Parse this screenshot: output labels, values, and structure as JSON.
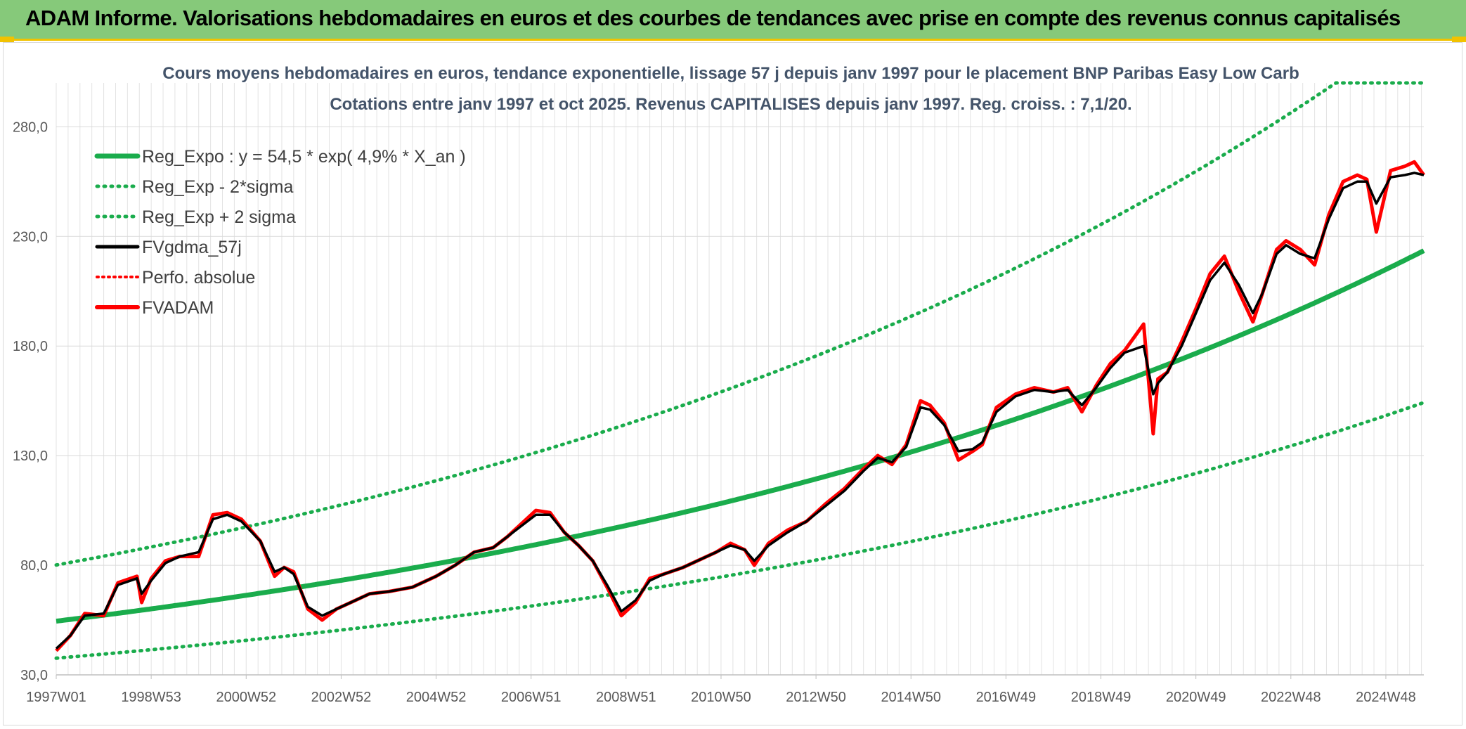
{
  "header": {
    "title": "ADAM Informe. Valorisations hebdomadaires en euros et des courbes de tendances avec prise en compte des revenus connus capitalisés"
  },
  "colors": {
    "banner": "#86c97a",
    "accent": "#f2c200",
    "regression": "#1aac4c",
    "smoothed": "#000000",
    "fvadam": "#ff0000"
  },
  "chart_data": {
    "type": "line",
    "title": "Cours moyens hebdomadaires en euros, tendance exponentielle, lissage 57 j depuis janv 1997 pour le placement BNP Paribas Easy Low Carb",
    "subtitle": "Cotations entre janv 1997 et oct 2025. Revenus CAPITALISES depuis janv 1997. Reg. croiss. : 7,1/20.",
    "xlabel": "",
    "ylabel": "",
    "ylim": [
      30,
      300
    ],
    "xlim": [
      1997.0,
      2025.8
    ],
    "yticks": [
      "30,0",
      "80,0",
      "130,0",
      "180,0",
      "230,0",
      "280,0"
    ],
    "ytick_values": [
      30,
      80,
      130,
      180,
      230,
      280
    ],
    "xticks": [
      "1997W01",
      "1998W53",
      "2000W52",
      "2002W52",
      "2004W52",
      "2006W51",
      "2008W51",
      "2010W50",
      "2012W50",
      "2014W50",
      "2016W49",
      "2018W49",
      "2020W49",
      "2022W48",
      "2024W48"
    ],
    "xtick_values": [
      1997.0,
      1999.0,
      2001.0,
      2003.0,
      2005.0,
      2007.0,
      2009.0,
      2011.0,
      2013.0,
      2015.0,
      2017.0,
      2019.0,
      2021.0,
      2023.0,
      2025.0
    ],
    "regression": {
      "a": 54.5,
      "rate": 0.049,
      "minus_2sigma_factor": 0.69,
      "plus_2sigma_factor": 1.47,
      "cap": 300
    },
    "legend_position": "top-left",
    "legend": [
      {
        "label": "Reg_Expo : y = 54,5 * exp( 4,9% *  X_an )",
        "style": "solid-thick-green"
      },
      {
        "label": "Reg_Exp - 2*sigma",
        "style": "dotted-green"
      },
      {
        "label": "Reg_Exp + 2 sigma",
        "style": "dotted-green"
      },
      {
        "label": "FVgdma_57j",
        "style": "solid-black"
      },
      {
        "label": "Perfo. absolue",
        "style": "dotted-red"
      },
      {
        "label": "FVADAM",
        "style": "solid-red"
      }
    ],
    "series": [
      {
        "name": "FVADAM",
        "x": [
          1997.0,
          1997.3,
          1997.6,
          1998.0,
          1998.3,
          1998.7,
          1998.8,
          1999.0,
          1999.3,
          1999.6,
          2000.0,
          2000.3,
          2000.6,
          2000.9,
          2001.3,
          2001.6,
          2001.8,
          2002.0,
          2002.3,
          2002.6,
          2002.9,
          2003.2,
          2003.6,
          2004.0,
          2004.5,
          2005.0,
          2005.4,
          2005.8,
          2006.2,
          2006.5,
          2006.8,
          2007.1,
          2007.4,
          2007.7,
          2008.0,
          2008.3,
          2008.6,
          2008.9,
          2009.2,
          2009.5,
          2009.8,
          2010.2,
          2010.5,
          2010.9,
          2011.2,
          2011.5,
          2011.7,
          2012.0,
          2012.4,
          2012.8,
          2013.2,
          2013.6,
          2014.0,
          2014.3,
          2014.6,
          2014.9,
          2015.2,
          2015.4,
          2015.7,
          2016.0,
          2016.3,
          2016.5,
          2016.8,
          2017.2,
          2017.6,
          2018.0,
          2018.3,
          2018.6,
          2018.9,
          2019.2,
          2019.5,
          2019.9,
          2020.1,
          2020.2,
          2020.4,
          2020.7,
          2021.0,
          2021.3,
          2021.6,
          2021.9,
          2022.2,
          2022.4,
          2022.7,
          2022.9,
          2023.2,
          2023.5,
          2023.8,
          2024.1,
          2024.4,
          2024.6,
          2024.8,
          2025.1,
          2025.4,
          2025.6,
          2025.8
        ],
        "values": [
          41,
          48,
          58,
          57,
          72,
          75,
          63,
          74,
          82,
          84,
          84,
          103,
          104,
          101,
          91,
          75,
          79,
          77,
          60,
          55,
          60,
          63,
          67,
          68,
          70,
          75,
          80,
          86,
          88,
          93,
          99,
          105,
          104,
          95,
          89,
          82,
          70,
          57,
          63,
          74,
          76,
          79,
          82,
          86,
          90,
          87,
          80,
          90,
          96,
          100,
          108,
          115,
          124,
          130,
          126,
          135,
          155,
          153,
          145,
          128,
          132,
          135,
          152,
          158,
          161,
          159,
          161,
          150,
          162,
          172,
          178,
          190,
          140,
          165,
          168,
          182,
          197,
          213,
          221,
          205,
          191,
          204,
          224,
          228,
          224,
          217,
          240,
          255,
          258,
          256,
          232,
          260,
          262,
          264,
          258
        ]
      },
      {
        "name": "FVgdma_57j",
        "x": [
          1997.0,
          1997.3,
          1997.6,
          1998.0,
          1998.3,
          1998.7,
          1998.8,
          1999.0,
          1999.3,
          1999.6,
          2000.0,
          2000.3,
          2000.6,
          2000.9,
          2001.3,
          2001.6,
          2001.8,
          2002.0,
          2002.3,
          2002.6,
          2002.9,
          2003.2,
          2003.6,
          2004.0,
          2004.5,
          2005.0,
          2005.4,
          2005.8,
          2006.2,
          2006.5,
          2006.8,
          2007.1,
          2007.4,
          2007.7,
          2008.0,
          2008.3,
          2008.6,
          2008.9,
          2009.2,
          2009.5,
          2009.8,
          2010.2,
          2010.5,
          2010.9,
          2011.2,
          2011.5,
          2011.7,
          2012.0,
          2012.4,
          2012.8,
          2013.2,
          2013.6,
          2014.0,
          2014.3,
          2014.6,
          2014.9,
          2015.2,
          2015.4,
          2015.7,
          2016.0,
          2016.3,
          2016.5,
          2016.8,
          2017.2,
          2017.6,
          2018.0,
          2018.3,
          2018.6,
          2018.9,
          2019.2,
          2019.5,
          2019.9,
          2020.1,
          2020.2,
          2020.4,
          2020.7,
          2021.0,
          2021.3,
          2021.6,
          2021.9,
          2022.2,
          2022.4,
          2022.7,
          2022.9,
          2023.2,
          2023.5,
          2023.8,
          2024.1,
          2024.4,
          2024.6,
          2024.8,
          2025.1,
          2025.4,
          2025.6,
          2025.8
        ],
        "values": [
          42,
          48,
          57,
          58,
          71,
          74,
          67,
          73,
          81,
          84,
          86,
          101,
          103,
          100,
          91,
          77,
          79,
          76,
          61,
          57,
          60,
          63,
          67,
          68,
          70,
          75,
          80,
          86,
          88,
          93,
          98,
          103,
          103,
          95,
          89,
          82,
          71,
          59,
          64,
          73,
          76,
          79,
          82,
          86,
          89,
          87,
          82,
          89,
          95,
          100,
          107,
          114,
          123,
          129,
          127,
          134,
          152,
          151,
          144,
          132,
          133,
          136,
          150,
          157,
          160,
          159,
          160,
          153,
          161,
          170,
          177,
          180,
          158,
          163,
          168,
          180,
          195,
          210,
          218,
          208,
          195,
          204,
          222,
          226,
          222,
          220,
          238,
          252,
          255,
          255,
          245,
          257,
          258,
          259,
          258
        ]
      }
    ]
  }
}
